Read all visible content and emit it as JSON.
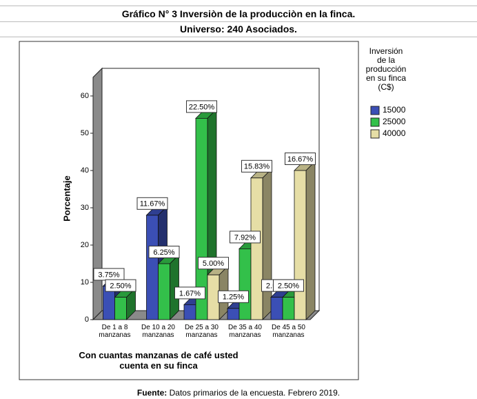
{
  "chart_data": {
    "type": "bar3d",
    "title": "Gráfico N° 3 Inversiòn de la producciòn en la finca.",
    "subtitle": "Universo: 240 Asociados.",
    "x_label": "Con cuantas manzanas de café usted\ncuenta en su finca",
    "y_label": "Porcentaje",
    "legend_title": "Inversión\nde la\nproducción\nen su finca\n(C$)",
    "source_label": "Fuente:",
    "source_text": "Datos primarios de la encuesta. Febrero 2019.",
    "categories": [
      "De 1 a 8\nmanzanas",
      "De 10 a 20\nmanzanas",
      "De 25 a 30\nmanzanas",
      "De 35 a 40\nmanzanas",
      "De 45 a 50\nmanzanas"
    ],
    "series": [
      {
        "name": "15000",
        "color": "#3b4fb5",
        "values": [
          9,
          28,
          4,
          3,
          6
        ],
        "data_labels": [
          "3.75%",
          "11.67%",
          "1.67%",
          "1.25%",
          "2.50%"
        ]
      },
      {
        "name": "25000",
        "color": "#33c04a",
        "values": [
          6,
          15,
          54,
          19,
          6
        ],
        "data_labels": [
          "2.50%",
          "6.25%",
          "22.50%",
          "7.92%",
          "2.50%"
        ]
      },
      {
        "name": "40000",
        "color": "#e6dea6",
        "values": [
          null,
          null,
          12,
          38,
          40
        ],
        "data_labels": [
          null,
          null,
          "5.00%",
          "15.83%",
          "16.67%"
        ]
      }
    ],
    "ylim": [
      0,
      65
    ],
    "yticks": [
      0,
      10,
      20,
      30,
      40,
      50,
      60
    ],
    "legend": "right"
  }
}
